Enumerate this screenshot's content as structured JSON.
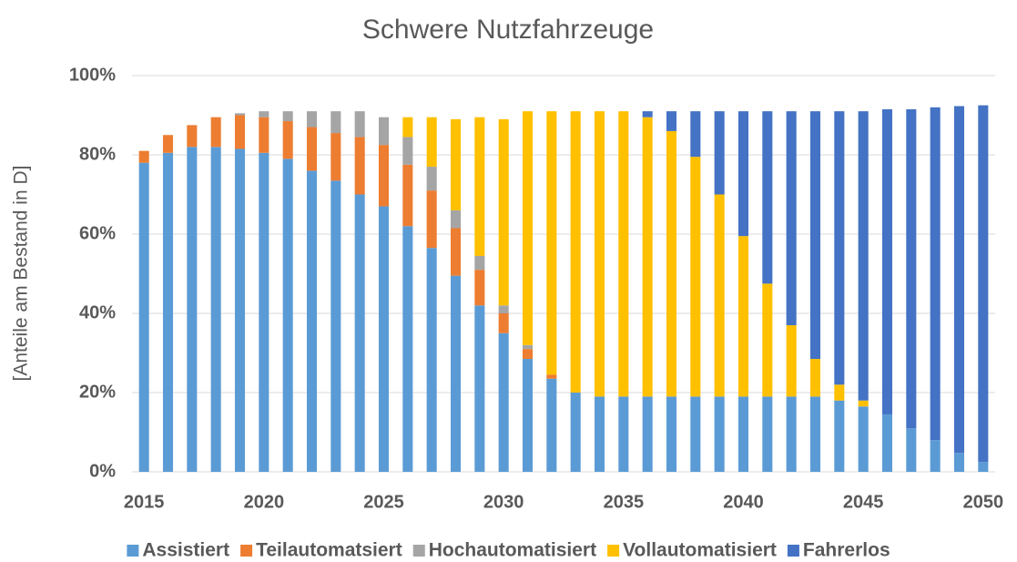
{
  "chart_data": {
    "type": "stacked_bar",
    "title": "Schwere Nutzfahrzeuge",
    "y_label": "[Anteile am Bestand in D]",
    "categories": [
      "2015",
      null,
      null,
      null,
      null,
      "2020",
      null,
      null,
      null,
      null,
      "2025",
      null,
      null,
      null,
      null,
      "2030",
      null,
      null,
      null,
      null,
      "2035",
      null,
      null,
      null,
      null,
      "2040",
      null,
      null,
      null,
      null,
      "2045",
      null,
      null,
      null,
      null,
      "2050"
    ],
    "series": [
      {
        "name": "Assistiert",
        "color": "#5b9bd5",
        "values": [
          78,
          80.5,
          82,
          82,
          81.5,
          80.5,
          79,
          76,
          73.5,
          70,
          67,
          62,
          56.5,
          49.5,
          42,
          35,
          28.5,
          23.5,
          20,
          19,
          19,
          19,
          19,
          19,
          19,
          19,
          19,
          19,
          19,
          18,
          16.5,
          14.5,
          11,
          8,
          4.8,
          2.5
        ]
      },
      {
        "name": "Teilautomatsiert",
        "color": "#ed7d31",
        "values": [
          3,
          4.5,
          5.5,
          7.5,
          8.5,
          9,
          9.5,
          11,
          12,
          14.5,
          15.5,
          15.5,
          14.5,
          12,
          9,
          5,
          2.5,
          1,
          0,
          0,
          0,
          0,
          0,
          0,
          0,
          0,
          0,
          0,
          0,
          0,
          0,
          0,
          0,
          0,
          0,
          0
        ]
      },
      {
        "name": "Hochautomatisiert",
        "color": "#a5a5a5",
        "values": [
          0,
          0,
          0,
          0,
          0.5,
          1.5,
          2.5,
          4,
          5.5,
          6.5,
          7,
          7,
          6,
          4.5,
          3.5,
          2,
          1,
          0,
          0,
          0,
          0,
          0,
          0,
          0,
          0,
          0,
          0,
          0,
          0,
          0,
          0,
          0,
          0,
          0,
          0,
          0
        ]
      },
      {
        "name": "Vollautomatisiert",
        "color": "#ffc000",
        "values": [
          0,
          0,
          0,
          0,
          0,
          0,
          0,
          0,
          0,
          0,
          0,
          5,
          12.5,
          23,
          35,
          47,
          59,
          66.5,
          71,
          72,
          72,
          70.5,
          67,
          60.5,
          51,
          40.5,
          28.5,
          18,
          9.5,
          4,
          1.5,
          0,
          0,
          0,
          0,
          0
        ]
      },
      {
        "name": "Fahrerlos",
        "color": "#4472c4",
        "values": [
          0,
          0,
          0,
          0,
          0,
          0,
          0,
          0,
          0,
          0,
          0,
          0,
          0,
          0,
          0,
          0,
          0,
          0,
          0,
          0,
          0,
          1.5,
          5,
          11.5,
          21,
          31.5,
          43.5,
          54,
          62.5,
          69,
          73,
          77,
          80.5,
          84,
          87.5,
          90
        ]
      }
    ],
    "ylim": [
      0,
      100
    ],
    "yticks": [
      {
        "value": 0,
        "label": "0%"
      },
      {
        "value": 20,
        "label": "20%"
      },
      {
        "value": 40,
        "label": "40%"
      },
      {
        "value": 60,
        "label": "60%"
      },
      {
        "value": 80,
        "label": "80%"
      },
      {
        "value": 100,
        "label": "100%"
      }
    ],
    "grid": true,
    "legend": "bottom"
  }
}
